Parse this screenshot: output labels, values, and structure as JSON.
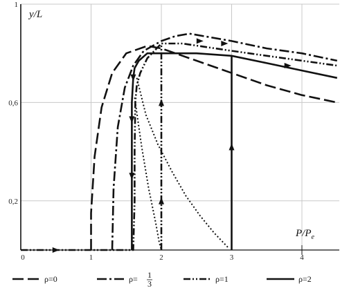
{
  "chart_data": {
    "type": "line",
    "xlabel": "P/P",
    "xlabel_sub": "e",
    "ylabel": "y/L",
    "xlim": [
      0,
      4.5
    ],
    "ylim": [
      0,
      1
    ],
    "x_ticks": [
      {
        "value": 0,
        "label": "0"
      },
      {
        "value": 1,
        "label": "1"
      },
      {
        "value": 2,
        "label": "2"
      },
      {
        "value": 3,
        "label": "3"
      },
      {
        "value": 4,
        "label": "4"
      }
    ],
    "y_ticks": [
      {
        "value": 1,
        "label": "1"
      },
      {
        "value": 0.6,
        "label": "0,6"
      },
      {
        "value": 0.2,
        "label": "0,2"
      }
    ],
    "grid": true,
    "legend_position": "bottom",
    "series": [
      {
        "name": "ρ=0",
        "dash": "long-dash",
        "points": [
          [
            1.0,
            0.0
          ],
          [
            1.0,
            0.15
          ],
          [
            1.05,
            0.38
          ],
          [
            1.15,
            0.58
          ],
          [
            1.3,
            0.72
          ],
          [
            1.5,
            0.8
          ],
          [
            1.8,
            0.83
          ],
          [
            2.0,
            0.82
          ],
          [
            2.5,
            0.77
          ],
          [
            3.0,
            0.72
          ],
          [
            3.5,
            0.67
          ],
          [
            4.0,
            0.63
          ],
          [
            4.5,
            0.6
          ]
        ]
      },
      {
        "name": "ρ=",
        "name_frac_num": "1",
        "name_frac_den": "3",
        "dash": "dash-dot",
        "points": [
          [
            1.3,
            0.0
          ],
          [
            1.32,
            0.25
          ],
          [
            1.38,
            0.5
          ],
          [
            1.48,
            0.66
          ],
          [
            1.6,
            0.75
          ],
          [
            1.75,
            0.81
          ],
          [
            2.0,
            0.85
          ],
          [
            2.2,
            0.87
          ],
          [
            2.4,
            0.88
          ],
          [
            3.0,
            0.85
          ],
          [
            3.5,
            0.82
          ],
          [
            4.0,
            0.8
          ],
          [
            4.5,
            0.77
          ]
        ]
      },
      {
        "name": "ρ=1",
        "dash": "dash-dot-dot",
        "points": [
          [
            0,
            0
          ],
          [
            1.6,
            0.0
          ],
          [
            1.62,
            0.2
          ],
          [
            1.62,
            0.4
          ],
          [
            1.63,
            0.6
          ],
          [
            1.65,
            0.67
          ],
          [
            1.7,
            0.72
          ],
          [
            1.8,
            0.78
          ],
          [
            2.0,
            0.84
          ],
          [
            2.3,
            0.84
          ],
          [
            3.0,
            0.81
          ],
          [
            3.5,
            0.79
          ],
          [
            4.0,
            0.77
          ],
          [
            4.5,
            0.75
          ]
        ]
      },
      {
        "name": "ρ=2",
        "dash": "solid",
        "points": [
          [
            1.58,
            0.0
          ],
          [
            1.58,
            0.3
          ],
          [
            1.58,
            0.6
          ],
          [
            1.6,
            0.7
          ],
          [
            1.62,
            0.74
          ],
          [
            1.68,
            0.77
          ],
          [
            1.8,
            0.8
          ],
          [
            2.5,
            0.8
          ],
          [
            3.0,
            0.79
          ],
          [
            3.5,
            0.76
          ],
          [
            4.0,
            0.73
          ],
          [
            4.5,
            0.7
          ]
        ]
      },
      {
        "name": "",
        "dash": "dotted",
        "points": [
          [
            1.65,
            0.7
          ],
          [
            1.78,
            0.55
          ],
          [
            1.95,
            0.43
          ],
          [
            2.15,
            0.32
          ],
          [
            2.35,
            0.22
          ],
          [
            2.55,
            0.14
          ],
          [
            2.75,
            0.07
          ],
          [
            2.95,
            0.01
          ]
        ]
      },
      {
        "name": "",
        "dash": "dotted",
        "points": [
          [
            1.62,
            0.62
          ],
          [
            1.72,
            0.42
          ],
          [
            1.82,
            0.25
          ],
          [
            1.92,
            0.11
          ],
          [
            1.97,
            0.03
          ],
          [
            2.0,
            0.0
          ]
        ]
      },
      {
        "name": "",
        "dash": "solid",
        "points": [
          [
            3.0,
            0.0
          ],
          [
            3.0,
            0.79
          ]
        ]
      },
      {
        "name": "",
        "dash": "dash-dot-dot",
        "points": [
          [
            2.0,
            0.0
          ],
          [
            2.0,
            0.84
          ]
        ]
      }
    ],
    "arrows": [
      {
        "x": 0.5,
        "y": 0.0,
        "direction": "right"
      },
      {
        "x": 3.0,
        "y": 0.42,
        "direction": "up"
      },
      {
        "x": 2.0,
        "y": 0.2,
        "direction": "up"
      },
      {
        "x": 2.0,
        "y": 0.6,
        "direction": "up"
      },
      {
        "x": 1.58,
        "y": 0.3,
        "direction": "down"
      },
      {
        "x": 1.58,
        "y": 0.53,
        "direction": "down"
      },
      {
        "x": 1.6,
        "y": 0.7,
        "direction": "down"
      },
      {
        "x": 2.55,
        "y": 0.85,
        "direction": "right"
      },
      {
        "x": 2.9,
        "y": 0.84,
        "direction": "right"
      },
      {
        "x": 3.8,
        "y": 0.75,
        "direction": "right"
      }
    ]
  }
}
